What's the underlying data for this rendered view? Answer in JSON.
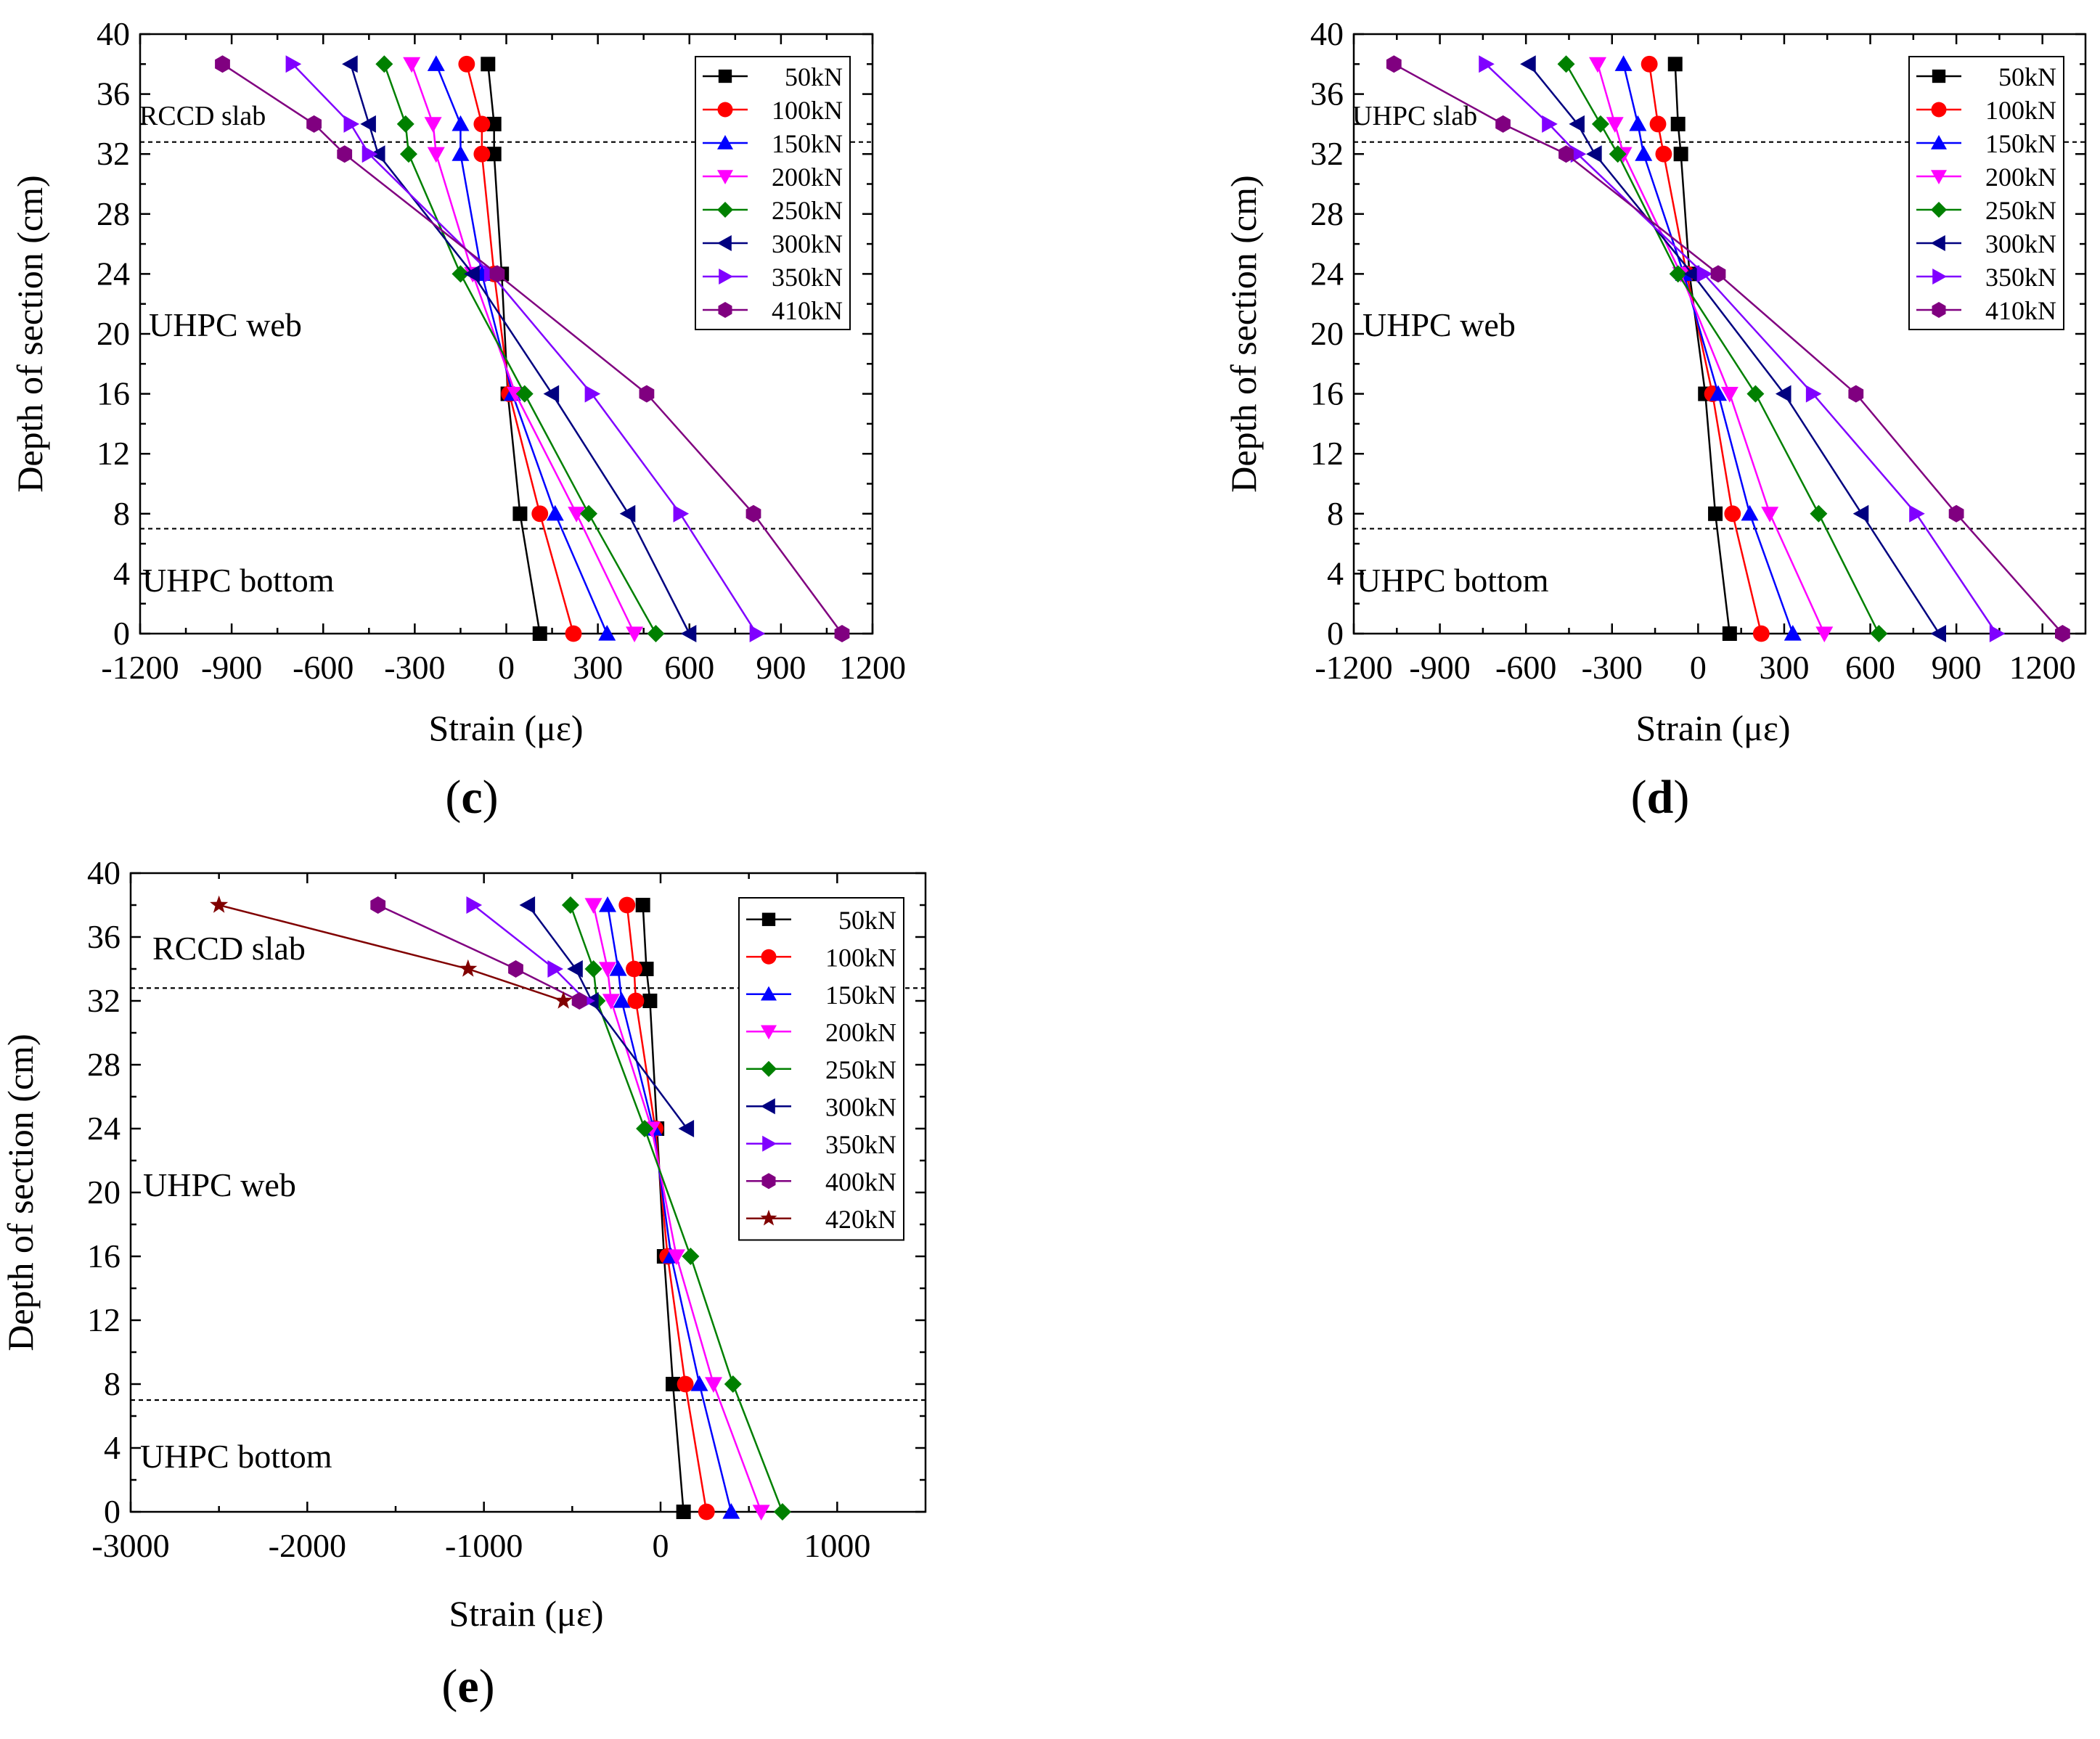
{
  "panels": [
    {
      "label": "c",
      "xlabel": "Strain (με)",
      "ylabel": "Depth of section (cm)",
      "xlim": [
        -1200,
        1200
      ],
      "ylim": [
        0,
        40
      ],
      "xticks": [
        -1200,
        -900,
        -600,
        -300,
        0,
        300,
        600,
        900,
        1200
      ],
      "xtick_labels": [
        "-1200",
        "-900",
        "-600",
        "-300",
        "0",
        "300",
        "600",
        "900",
        "1200"
      ],
      "yticks": [
        0,
        4,
        8,
        12,
        16,
        20,
        24,
        28,
        32,
        36,
        40
      ],
      "ytick_labels": [
        "0",
        "4",
        "8",
        "12",
        "16",
        "20",
        "24",
        "28",
        "32",
        "36",
        "40"
      ],
      "regions": [
        {
          "name": "slab",
          "text": "RCCD slab"
        },
        {
          "name": "web",
          "text": "UHPC web"
        },
        {
          "name": "bottom",
          "text": "UHPC bottom"
        }
      ],
      "dividers_depth": [
        32.8,
        7
      ],
      "legend_position": "top-right",
      "series": [
        {
          "name": "50kN",
          "color": "#000000",
          "marker": "square",
          "depth": [
            0,
            8,
            16,
            24,
            32,
            34,
            38
          ],
          "strain": [
            110,
            45,
            5,
            -15,
            -40,
            -40,
            -60
          ]
        },
        {
          "name": "100kN",
          "color": "#ff0000",
          "marker": "circle",
          "depth": [
            0,
            8,
            16,
            24,
            32,
            34,
            38
          ],
          "strain": [
            220,
            110,
            10,
            -40,
            -80,
            -80,
            -130
          ]
        },
        {
          "name": "150kN",
          "color": "#0000ff",
          "marker": "triangle-up",
          "depth": [
            0,
            8,
            16,
            24,
            32,
            34,
            38
          ],
          "strain": [
            330,
            160,
            20,
            -80,
            -150,
            -150,
            -230
          ]
        },
        {
          "name": "200kN",
          "color": "#ff00ff",
          "marker": "triangle-down",
          "depth": [
            0,
            8,
            16,
            24,
            32,
            34,
            38
          ],
          "strain": [
            420,
            230,
            30,
            -110,
            -230,
            -240,
            -310
          ]
        },
        {
          "name": "250kN",
          "color": "#008000",
          "marker": "diamond",
          "depth": [
            0,
            8,
            16,
            24,
            32,
            34,
            38
          ],
          "strain": [
            490,
            270,
            60,
            -150,
            -320,
            -330,
            -400
          ]
        },
        {
          "name": "300kN",
          "color": "#000080",
          "marker": "triangle-left",
          "depth": [
            0,
            8,
            16,
            24,
            32,
            34,
            38
          ],
          "strain": [
            600,
            400,
            150,
            -110,
            -420,
            -450,
            -510
          ]
        },
        {
          "name": "350kN",
          "color": "#8000ff",
          "marker": "triangle-right",
          "depth": [
            0,
            8,
            16,
            24,
            32,
            34,
            38
          ],
          "strain": [
            820,
            570,
            280,
            -50,
            -450,
            -510,
            -700
          ]
        },
        {
          "name": "410kN",
          "color": "#800080",
          "marker": "hexagon",
          "depth": [
            0,
            8,
            16,
            24,
            32,
            34,
            38
          ],
          "strain": [
            1100,
            810,
            460,
            -30,
            -530,
            -630,
            -930
          ]
        }
      ]
    },
    {
      "label": "d",
      "xlabel": "Strain (με)",
      "ylabel": "Depth of section (cm)",
      "xlim": [
        -1200,
        1350
      ],
      "ylim": [
        0,
        40
      ],
      "xticks": [
        -1200,
        -900,
        -600,
        -300,
        0,
        300,
        600,
        900,
        1200
      ],
      "xtick_labels": [
        "-1200",
        "-900",
        "-600",
        "-300",
        "0",
        "300",
        "600",
        "900",
        "1200"
      ],
      "yticks": [
        0,
        4,
        8,
        12,
        16,
        20,
        24,
        28,
        32,
        36,
        40
      ],
      "ytick_labels": [
        "0",
        "4",
        "8",
        "12",
        "16",
        "20",
        "24",
        "28",
        "32",
        "36",
        "40"
      ],
      "regions": [
        {
          "name": "slab",
          "text": "UHPC slab"
        },
        {
          "name": "web",
          "text": "UHPC web"
        },
        {
          "name": "bottom",
          "text": "UHPC bottom"
        }
      ],
      "dividers_depth": [
        32.8,
        7
      ],
      "legend_position": "top-right",
      "series": [
        {
          "name": "50kN",
          "color": "#000000",
          "marker": "square",
          "depth": [
            0,
            8,
            16,
            24,
            32,
            34,
            38
          ],
          "strain": [
            110,
            60,
            25,
            -30,
            -60,
            -70,
            -80
          ]
        },
        {
          "name": "100kN",
          "color": "#ff0000",
          "marker": "circle",
          "depth": [
            0,
            8,
            16,
            24,
            32,
            34,
            38
          ],
          "strain": [
            220,
            120,
            50,
            -40,
            -120,
            -140,
            -170
          ]
        },
        {
          "name": "150kN",
          "color": "#0000ff",
          "marker": "triangle-up",
          "depth": [
            0,
            8,
            16,
            24,
            32,
            34,
            38
          ],
          "strain": [
            330,
            180,
            70,
            -50,
            -190,
            -210,
            -260
          ]
        },
        {
          "name": "200kN",
          "color": "#ff00ff",
          "marker": "triangle-down",
          "depth": [
            0,
            8,
            16,
            24,
            32,
            34,
            38
          ],
          "strain": [
            440,
            250,
            110,
            -60,
            -260,
            -290,
            -350
          ]
        },
        {
          "name": "250kN",
          "color": "#008000",
          "marker": "diamond",
          "depth": [
            0,
            8,
            16,
            24,
            32,
            34,
            38
          ],
          "strain": [
            630,
            420,
            200,
            -70,
            -280,
            -340,
            -460
          ]
        },
        {
          "name": "300kN",
          "color": "#000080",
          "marker": "triangle-left",
          "depth": [
            0,
            8,
            16,
            24,
            32,
            34,
            38
          ],
          "strain": [
            840,
            570,
            300,
            -20,
            -360,
            -420,
            -590
          ]
        },
        {
          "name": "350kN",
          "color": "#8000ff",
          "marker": "triangle-right",
          "depth": [
            0,
            8,
            16,
            24,
            32,
            34,
            38
          ],
          "strain": [
            1040,
            760,
            400,
            20,
            -420,
            -520,
            -740
          ]
        },
        {
          "name": "410kN",
          "color": "#800080",
          "marker": "hexagon",
          "depth": [
            0,
            8,
            16,
            24,
            32,
            34,
            38
          ],
          "strain": [
            1270,
            900,
            550,
            70,
            -460,
            -680,
            -1060
          ]
        }
      ]
    },
    {
      "label": "e",
      "xlabel": "Strain (με)",
      "ylabel": "Depth of section (cm)",
      "xlim": [
        -3000,
        1500
      ],
      "ylim": [
        0,
        40
      ],
      "xticks": [
        -3000,
        -2000,
        -1000,
        0,
        1000
      ],
      "xtick_labels": [
        "-3000",
        "-2000",
        "-1000",
        "0",
        "1000"
      ],
      "yticks": [
        0,
        4,
        8,
        12,
        16,
        20,
        24,
        28,
        32,
        36,
        40
      ],
      "ytick_labels": [
        "0",
        "4",
        "8",
        "12",
        "16",
        "20",
        "24",
        "28",
        "32",
        "36",
        "40"
      ],
      "regions": [
        {
          "name": "slab",
          "text": "RCCD slab"
        },
        {
          "name": "web",
          "text": "UHPC web"
        },
        {
          "name": "bottom",
          "text": "UHPC bottom"
        }
      ],
      "dividers_depth": [
        32.8,
        7
      ],
      "legend_position": "top-right",
      "series": [
        {
          "name": "50kN",
          "color": "#000000",
          "marker": "square",
          "depth": [
            0,
            8,
            16,
            24,
            32,
            34,
            38
          ],
          "strain": [
            130,
            70,
            20,
            -20,
            -60,
            -80,
            -100
          ]
        },
        {
          "name": "100kN",
          "color": "#ff0000",
          "marker": "circle",
          "depth": [
            0,
            8,
            16,
            24,
            32,
            34,
            38
          ],
          "strain": [
            260,
            140,
            40,
            -30,
            -140,
            -150,
            -190
          ]
        },
        {
          "name": "150kN",
          "color": "#0000ff",
          "marker": "triangle-up",
          "depth": [
            0,
            8,
            16,
            24,
            32,
            34,
            38
          ],
          "strain": [
            400,
            220,
            60,
            -40,
            -220,
            -240,
            -300
          ]
        },
        {
          "name": "200kN",
          "color": "#ff00ff",
          "marker": "triangle-down",
          "depth": [
            0,
            8,
            16,
            24,
            32,
            34,
            38
          ],
          "strain": [
            570,
            300,
            90,
            -50,
            -280,
            -300,
            -380
          ]
        },
        {
          "name": "250kN",
          "color": "#008000",
          "marker": "diamond",
          "depth": [
            0,
            8,
            16,
            24,
            32,
            34,
            38
          ],
          "strain": [
            690,
            410,
            170,
            -90,
            -360,
            -380,
            -510
          ]
        },
        {
          "name": "300kN",
          "color": "#000080",
          "marker": "triangle-left",
          "depth": [
            0,
            8,
            16,
            24,
            32,
            34,
            38
          ],
          "strain": [
            null,
            null,
            null,
            150,
            -390,
            -480,
            -750
          ]
        },
        {
          "name": "350kN",
          "color": "#8000ff",
          "marker": "triangle-right",
          "depth": [
            0,
            8,
            16,
            24,
            32,
            34,
            38
          ],
          "strain": [
            null,
            null,
            null,
            null,
            -420,
            -600,
            -1060
          ]
        },
        {
          "name": "400kN",
          "color": "#800080",
          "marker": "hexagon",
          "depth": [
            0,
            8,
            16,
            24,
            32,
            34,
            38
          ],
          "strain": [
            null,
            null,
            null,
            null,
            -460,
            -820,
            -1600
          ]
        },
        {
          "name": "420kN",
          "color": "#800000",
          "marker": "star",
          "depth": [
            0,
            8,
            16,
            24,
            32,
            34,
            38
          ],
          "strain": [
            null,
            null,
            null,
            null,
            -550,
            -1090,
            -2500
          ]
        }
      ]
    }
  ]
}
